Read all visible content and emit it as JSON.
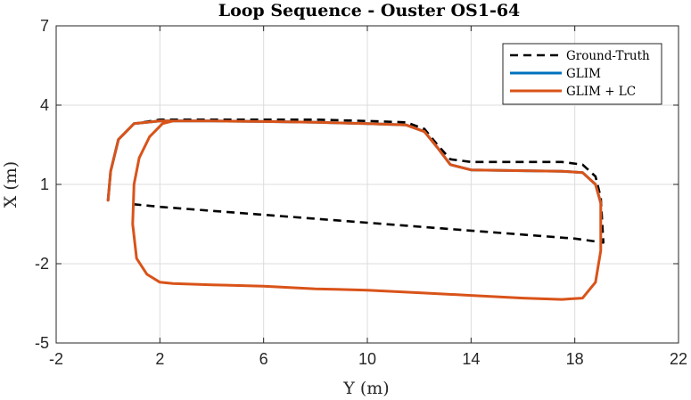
{
  "chart_data": {
    "type": "line",
    "title": "Loop Sequence - Ouster OS1-64",
    "xlabel": "Y (m)",
    "ylabel": "X (m)",
    "xlim": [
      -2,
      22
    ],
    "ylim": [
      -5,
      7
    ],
    "xticks": [
      -2,
      2,
      6,
      10,
      14,
      18,
      22
    ],
    "yticks": [
      -5,
      -2,
      1,
      4,
      7
    ],
    "grid": true,
    "legend_position": "top-right",
    "series": [
      {
        "name": "Ground-Truth",
        "color": "#000000",
        "style": "dashed",
        "x": [
          0.0,
          0.1,
          0.4,
          1.0,
          2.0,
          4.0,
          6.0,
          8.0,
          10.0,
          11.5,
          12.2,
          12.7,
          13.2,
          14.0,
          16.0,
          17.5,
          18.3,
          18.8,
          19.0,
          19.1,
          18.0,
          14.0,
          10.0,
          6.0,
          2.0,
          1.0
        ],
        "y": [
          0.4,
          1.5,
          2.7,
          3.3,
          3.45,
          3.45,
          3.45,
          3.45,
          3.4,
          3.35,
          3.1,
          2.5,
          1.95,
          1.85,
          1.85,
          1.85,
          1.75,
          1.3,
          0.5,
          -1.2,
          -1.05,
          -0.75,
          -0.45,
          -0.15,
          0.15,
          0.25
        ]
      },
      {
        "name": "GLIM",
        "color": "#0072BD",
        "style": "solid",
        "x": [
          0.0,
          0.1,
          0.4,
          1.0,
          2.0,
          4.0,
          6.0,
          8.0,
          10.0,
          11.5,
          12.2,
          12.7,
          13.2,
          14.0,
          16.0,
          17.5,
          18.3,
          18.8,
          19.0
        ],
        "y": [
          0.4,
          1.5,
          2.7,
          3.3,
          3.4,
          3.4,
          3.38,
          3.35,
          3.3,
          3.25,
          3.0,
          2.4,
          1.75,
          1.55,
          1.52,
          1.5,
          1.45,
          1.0,
          0.3
        ]
      },
      {
        "name": "GLIM + LC",
        "color": "#D95319",
        "style": "solid",
        "x": [
          0.0,
          0.1,
          0.4,
          1.0,
          2.0,
          4.0,
          6.0,
          8.0,
          10.0,
          11.5,
          12.2,
          12.7,
          13.2,
          14.0,
          16.0,
          17.5,
          18.3,
          18.8,
          19.0,
          19.0,
          18.8,
          18.3,
          17.5,
          16.0,
          14.0,
          12.0,
          10.0,
          8.0,
          6.0,
          4.0,
          2.5,
          2.0,
          1.5,
          1.1,
          0.95,
          1.0,
          1.2,
          1.6,
          2.1,
          2.5,
          3.5
        ],
        "y": [
          0.4,
          1.5,
          2.7,
          3.3,
          3.4,
          3.4,
          3.38,
          3.35,
          3.3,
          3.25,
          3.0,
          2.4,
          1.75,
          1.55,
          1.52,
          1.5,
          1.45,
          1.0,
          0.3,
          -1.5,
          -2.7,
          -3.3,
          -3.35,
          -3.3,
          -3.2,
          -3.1,
          -3.0,
          -2.95,
          -2.85,
          -2.8,
          -2.75,
          -2.7,
          -2.4,
          -1.8,
          -0.5,
          1.0,
          2.0,
          2.8,
          3.3,
          3.4,
          3.4
        ]
      }
    ]
  }
}
